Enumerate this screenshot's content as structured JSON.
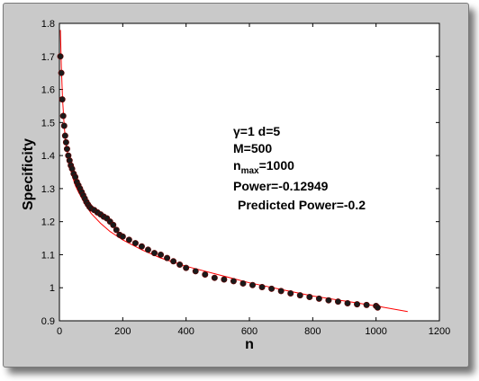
{
  "chart_data": {
    "type": "scatter",
    "title": "",
    "xlabel": "n",
    "ylabel": "Specificity",
    "xlim": [
      0,
      1200
    ],
    "ylim": [
      0.9,
      1.8
    ],
    "xticks": [
      0,
      200,
      400,
      600,
      800,
      1000,
      1200
    ],
    "yticks": [
      0.9,
      1,
      1.1,
      1.2,
      1.3,
      1.4,
      1.5,
      1.6,
      1.7,
      1.8
    ],
    "xtick_labels": [
      "0",
      "200",
      "400",
      "600",
      "800",
      "1000",
      "1200"
    ],
    "ytick_labels": [
      "0.9",
      "1",
      "1.1",
      "1.2",
      "1.3",
      "1.4",
      "1.5",
      "1.6",
      "1.7",
      "1.8"
    ],
    "grid": false,
    "annotations": [
      {
        "text": "γ=1 d=5"
      },
      {
        "text": "M=500"
      },
      {
        "base": "n",
        "sub": "max",
        "rest": "=1000"
      },
      {
        "text": "Power=-0.12949"
      },
      {
        "text": "Predicted Power=-0.2"
      }
    ],
    "colors": {
      "points": "#1a1a1a",
      "fit": "#ff0000"
    },
    "series": [
      {
        "kind": "points",
        "x": [
          3,
          6,
          9,
          12,
          15,
          18,
          21,
          24,
          28,
          32,
          36,
          40,
          45,
          50,
          55,
          60,
          65,
          70,
          75,
          80,
          85,
          90,
          95,
          100,
          110,
          120,
          130,
          140,
          150,
          160,
          170,
          180,
          190,
          200,
          220,
          240,
          260,
          280,
          300,
          320,
          340,
          360,
          380,
          400,
          430,
          460,
          490,
          520,
          550,
          580,
          610,
          640,
          670,
          700,
          730,
          760,
          790,
          820,
          850,
          880,
          910,
          940,
          970,
          1000,
          1005
        ],
        "y": [
          1.7,
          1.65,
          1.57,
          1.52,
          1.49,
          1.46,
          1.44,
          1.42,
          1.4,
          1.385,
          1.37,
          1.36,
          1.345,
          1.335,
          1.32,
          1.31,
          1.3,
          1.29,
          1.28,
          1.27,
          1.26,
          1.252,
          1.245,
          1.24,
          1.235,
          1.228,
          1.222,
          1.215,
          1.21,
          1.2,
          1.19,
          1.175,
          1.16,
          1.155,
          1.145,
          1.135,
          1.125,
          1.115,
          1.105,
          1.1,
          1.09,
          1.08,
          1.07,
          1.06,
          1.05,
          1.04,
          1.03,
          1.025,
          1.02,
          1.013,
          1.008,
          1.002,
          0.997,
          0.99,
          0.983,
          0.977,
          0.972,
          0.967,
          0.962,
          0.958,
          0.953,
          0.95,
          0.948,
          0.945,
          0.94
        ]
      },
      {
        "kind": "fit-line",
        "x": [
          3,
          6,
          10,
          15,
          20,
          30,
          40,
          50,
          60,
          80,
          100,
          130,
          160,
          200,
          260,
          320,
          400,
          500,
          600,
          700,
          800,
          900,
          1000,
          1100
        ],
        "y": [
          1.78,
          1.67,
          1.57,
          1.49,
          1.44,
          1.38,
          1.34,
          1.31,
          1.29,
          1.255,
          1.225,
          1.195,
          1.17,
          1.145,
          1.115,
          1.09,
          1.065,
          1.04,
          1.015,
          0.995,
          0.975,
          0.96,
          0.945,
          0.928
        ]
      }
    ]
  }
}
